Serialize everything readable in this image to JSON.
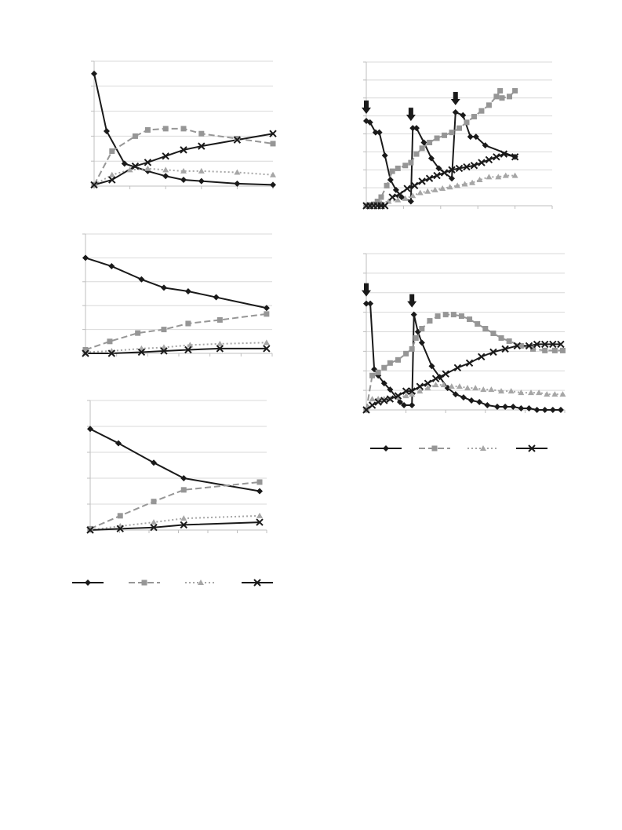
{
  "chart_data": [
    {
      "id": "chart-a",
      "type": "line",
      "title": "",
      "xlabel": "",
      "ylabel": "",
      "xlim": [
        0,
        100
      ],
      "ylim": [
        0,
        100
      ],
      "grid": true,
      "y_gridlines": 5,
      "x_ticks": 5,
      "series": [
        {
          "key": "s1",
          "x": [
            0,
            7,
            17,
            30,
            40,
            50,
            60,
            80,
            100
          ],
          "values": [
            90,
            44,
            18,
            12,
            8,
            5,
            4,
            2,
            1
          ]
        },
        {
          "key": "s2",
          "x": [
            0,
            10,
            23,
            30,
            40,
            50,
            60,
            80,
            100
          ],
          "values": [
            1,
            28,
            40,
            45,
            46,
            46,
            42,
            38,
            34
          ]
        },
        {
          "key": "s3",
          "x": [
            0,
            10,
            20,
            30,
            40,
            50,
            60,
            80,
            100
          ],
          "values": [
            1,
            9,
            13,
            14,
            13,
            12,
            12,
            11,
            9
          ]
        },
        {
          "key": "s4",
          "x": [
            0,
            10,
            23,
            30,
            40,
            50,
            60,
            80,
            100
          ],
          "values": [
            1,
            5,
            16,
            19,
            24,
            29,
            32,
            37,
            42
          ]
        }
      ]
    },
    {
      "id": "chart-b",
      "type": "line",
      "title": "",
      "xlabel": "",
      "ylabel": "",
      "xlim": [
        0,
        100
      ],
      "ylim": [
        0,
        100
      ],
      "grid": true,
      "y_gridlines": 5,
      "x_ticks": 6,
      "series": [
        {
          "key": "s1",
          "x": [
            0,
            14,
            30,
            42,
            55,
            70,
            97
          ],
          "values": [
            80,
            73,
            62,
            55,
            52,
            47,
            38
          ]
        },
        {
          "key": "s2",
          "x": [
            0,
            13,
            28,
            42,
            55,
            72,
            97
          ],
          "values": [
            3,
            10,
            17,
            20,
            25,
            28,
            33
          ]
        },
        {
          "key": "s3",
          "x": [
            0,
            14,
            30,
            42,
            56,
            72,
            97
          ],
          "values": [
            1,
            2,
            4,
            5,
            7,
            8,
            9
          ]
        },
        {
          "key": "s4",
          "x": [
            0,
            14,
            30,
            42,
            55,
            72,
            97
          ],
          "values": [
            0,
            0,
            1,
            2,
            3,
            4,
            4
          ]
        }
      ]
    },
    {
      "id": "chart-c",
      "type": "line",
      "title": "",
      "xlabel": "",
      "ylabel": "",
      "xlim": [
        0,
        100
      ],
      "ylim": [
        0,
        100
      ],
      "grid": true,
      "y_gridlines": 5,
      "x_ticks": 6,
      "series": [
        {
          "key": "s1",
          "x": [
            0,
            16,
            36,
            53,
            96
          ],
          "values": [
            78,
            67,
            52,
            40,
            30
          ]
        },
        {
          "key": "s2",
          "x": [
            0,
            17,
            36,
            53,
            96
          ],
          "values": [
            1,
            11,
            22,
            31,
            37
          ]
        },
        {
          "key": "s3",
          "x": [
            0,
            17,
            36,
            53,
            96
          ],
          "values": [
            0,
            3,
            6,
            9,
            11
          ]
        },
        {
          "key": "s4",
          "x": [
            0,
            17,
            36,
            53,
            96
          ],
          "values": [
            0,
            1,
            2,
            4,
            6
          ]
        }
      ]
    },
    {
      "id": "chart-d",
      "type": "line",
      "title": "",
      "xlabel": "",
      "ylabel": "",
      "xlim": [
        0,
        100
      ],
      "ylim": [
        0,
        100
      ],
      "grid": true,
      "y_gridlines": 8,
      "x_ticks": 5,
      "markers_at_x": [
        0,
        24,
        48
      ],
      "series": [
        {
          "key": "s1",
          "x": [
            0,
            2,
            5,
            7,
            10,
            13,
            16,
            19,
            24,
            25,
            27,
            31,
            35,
            39,
            46,
            48,
            52,
            56,
            59,
            64,
            80
          ],
          "values": [
            59,
            58,
            51,
            51,
            35,
            18,
            11,
            6,
            3,
            54,
            54,
            44,
            33,
            26,
            19,
            65,
            63,
            48,
            48,
            42,
            34
          ]
        },
        {
          "key": "s2",
          "x": [
            0,
            2,
            4,
            6,
            8,
            11,
            14,
            17,
            21,
            24,
            27,
            30,
            34,
            38,
            42,
            46,
            50,
            54,
            58,
            62,
            66,
            70,
            72,
            73,
            77,
            80
          ],
          "values": [
            0,
            0,
            1,
            3,
            6,
            14,
            24,
            26,
            28,
            30,
            36,
            40,
            44,
            47,
            49,
            51,
            54,
            58,
            62,
            66,
            70,
            76,
            80,
            75,
            76,
            80
          ]
        },
        {
          "key": "s3",
          "x": [
            0,
            4,
            8,
            12,
            17,
            21,
            25,
            29,
            33,
            37,
            41,
            45,
            49,
            53,
            57,
            61,
            66,
            71,
            75,
            80
          ],
          "values": [
            0,
            1,
            2,
            3,
            4,
            5,
            7,
            9,
            10,
            11,
            12,
            13,
            14,
            15,
            16,
            18,
            20,
            20,
            21,
            21
          ]
        },
        {
          "key": "s4",
          "x": [
            0,
            2,
            4,
            6,
            8,
            10,
            14,
            18,
            22,
            26,
            30,
            34,
            38,
            42,
            46,
            50,
            54,
            58,
            62,
            66,
            70,
            74,
            80
          ],
          "values": [
            0,
            0,
            0,
            0,
            0,
            0,
            6,
            8,
            12,
            14,
            17,
            19,
            21,
            23,
            25,
            26,
            27,
            28,
            30,
            32,
            34,
            36,
            34
          ]
        }
      ]
    },
    {
      "id": "chart-e",
      "type": "line",
      "title": "",
      "xlabel": "",
      "ylabel": "",
      "xlim": [
        0,
        100
      ],
      "ylim": [
        0,
        100
      ],
      "grid": true,
      "y_gridlines": 8,
      "x_ticks": 5,
      "markers_at_x": [
        0,
        23
      ],
      "series": [
        {
          "key": "s1",
          "x": [
            0,
            2,
            4,
            6,
            9,
            12,
            17,
            19,
            23,
            24,
            26,
            28,
            33,
            37,
            41,
            45,
            49,
            53,
            57,
            61,
            66,
            70,
            74,
            78,
            82,
            86,
            90,
            94,
            98
          ],
          "values": [
            68,
            68,
            26,
            22,
            17,
            13,
            5,
            3,
            3,
            61,
            50,
            43,
            28,
            21,
            14,
            10,
            8,
            6,
            5,
            3,
            2,
            2,
            2,
            1,
            1,
            0,
            0,
            0,
            0
          ]
        },
        {
          "key": "s2",
          "x": [
            0,
            3,
            6,
            9,
            12,
            16,
            20,
            23,
            25,
            28,
            32,
            36,
            40,
            44,
            48,
            52,
            56,
            60,
            64,
            68,
            72,
            78,
            84,
            90,
            95,
            99
          ],
          "values": [
            0,
            22,
            24,
            27,
            30,
            32,
            36,
            39,
            46,
            52,
            57,
            60,
            61,
            61,
            60,
            58,
            55,
            52,
            49,
            46,
            44,
            41,
            39,
            38,
            38,
            38
          ]
        },
        {
          "key": "s3",
          "x": [
            0,
            3,
            6,
            9,
            12,
            16,
            20,
            23,
            27,
            31,
            35,
            39,
            43,
            47,
            51,
            55,
            59,
            63,
            68,
            73,
            78,
            83,
            87,
            91,
            95,
            99
          ],
          "values": [
            0,
            7,
            7,
            7,
            7,
            8,
            9,
            10,
            12,
            14,
            16,
            16,
            15,
            15,
            14,
            14,
            13,
            13,
            12,
            12,
            11,
            11,
            11,
            10,
            10,
            10
          ]
        },
        {
          "key": "s4",
          "x": [
            0,
            3,
            6,
            9,
            12,
            16,
            20,
            23,
            27,
            31,
            35,
            40,
            46,
            52,
            58,
            64,
            70,
            76,
            82,
            86,
            90,
            94,
            98
          ],
          "values": [
            0,
            3,
            5,
            6,
            7,
            9,
            12,
            12,
            15,
            17,
            20,
            23,
            27,
            30,
            34,
            37,
            39,
            41,
            41,
            42,
            42,
            42,
            42
          ]
        }
      ]
    }
  ],
  "legends": [
    {
      "id": "legend-left",
      "items": [
        {
          "key": "s1",
          "label": ""
        },
        {
          "key": "s2",
          "label": ""
        },
        {
          "key": "s3",
          "label": ""
        },
        {
          "key": "s4",
          "label": ""
        }
      ]
    },
    {
      "id": "legend-right",
      "items": [
        {
          "key": "s1",
          "label": ""
        },
        {
          "key": "s2",
          "label": ""
        },
        {
          "key": "s3",
          "label": ""
        },
        {
          "key": "s4",
          "label": ""
        }
      ]
    }
  ],
  "series_styles": {
    "s1": {
      "color": "#1a1a1a",
      "dash": "",
      "marker": "diamond"
    },
    "s2": {
      "color": "#969696",
      "dash": "8,4",
      "marker": "square"
    },
    "s3": {
      "color": "#a6a6a6",
      "dash": "2,3",
      "marker": "triangle"
    },
    "s4": {
      "color": "#1a1a1a",
      "dash": "",
      "marker": "x"
    }
  }
}
